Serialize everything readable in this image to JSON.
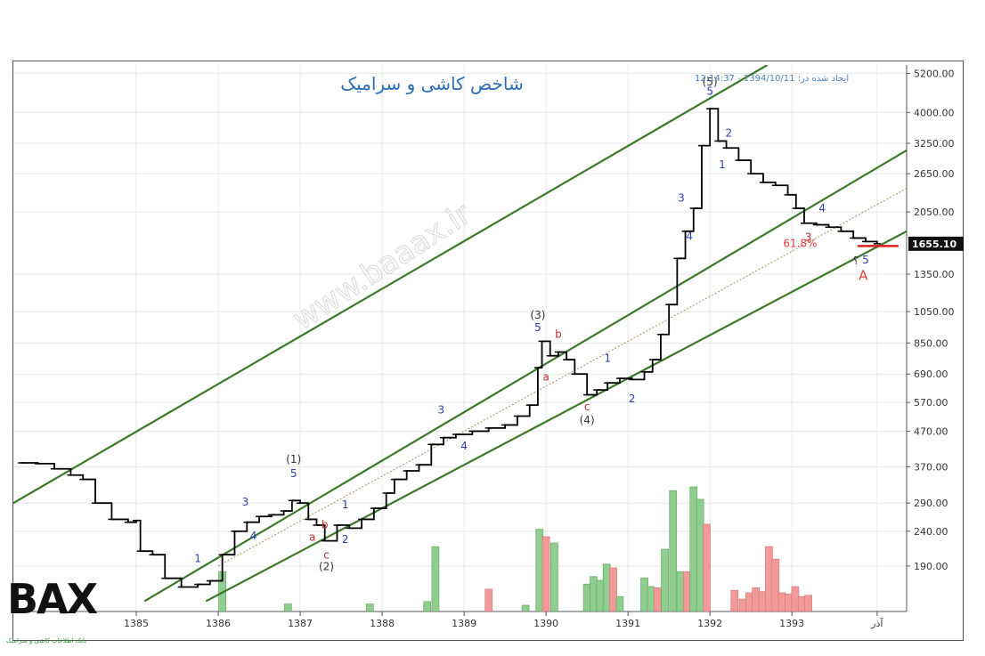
{
  "chart_data": {
    "type": "line",
    "subtype": "ohlc-bars-with-volume",
    "title": "شاخص کاشی و سرامیک",
    "timestamp": "ایجاد شده در: 1394/10/11 - 12:14:37",
    "y_scale": "log",
    "ylim": [
      140,
      5500
    ],
    "y_ticks": [
      "5200.00",
      "4000.00",
      "3250.00",
      "2650.00",
      "2050.00",
      "1655.10",
      "1350.00",
      "1050.00",
      "850.00",
      "690.00",
      "570.00",
      "470.00",
      "370.00",
      "290.00",
      "240.00",
      "190.00"
    ],
    "y_tick_values": [
      5200,
      4000,
      3250,
      2650,
      2050,
      1655.1,
      1350,
      1050,
      850,
      690,
      570,
      470,
      370,
      290,
      240,
      190
    ],
    "current_value_label": "1655.10",
    "current_value": 1655.1,
    "x_ticks": [
      "1385",
      "1386",
      "1387",
      "1388",
      "1389",
      "1390",
      "1391",
      "1392",
      "1393",
      "آذر"
    ],
    "x_tick_values": [
      1385,
      1386,
      1387,
      1388,
      1389,
      1390,
      1391,
      1392,
      1393,
      1394.04
    ],
    "xlim": [
      1383.5,
      1394.4
    ],
    "grid": true,
    "price_series": [
      [
        1383.6,
        380
      ],
      [
        1383.8,
        378
      ],
      [
        1384.0,
        365
      ],
      [
        1384.2,
        350
      ],
      [
        1384.35,
        340
      ],
      [
        1384.5,
        290
      ],
      [
        1384.7,
        260
      ],
      [
        1384.9,
        255
      ],
      [
        1385.0,
        258
      ],
      [
        1385.05,
        210
      ],
      [
        1385.2,
        205
      ],
      [
        1385.35,
        175
      ],
      [
        1385.55,
        165
      ],
      [
        1385.75,
        168
      ],
      [
        1385.9,
        172
      ],
      [
        1386.05,
        205
      ],
      [
        1386.2,
        240
      ],
      [
        1386.35,
        255
      ],
      [
        1386.5,
        265
      ],
      [
        1386.65,
        268
      ],
      [
        1386.8,
        275
      ],
      [
        1386.9,
        295
      ],
      [
        1387.0,
        290
      ],
      [
        1387.1,
        260
      ],
      [
        1387.2,
        250
      ],
      [
        1387.3,
        225
      ],
      [
        1387.45,
        250
      ],
      [
        1387.6,
        245
      ],
      [
        1387.75,
        260
      ],
      [
        1387.9,
        280
      ],
      [
        1388.05,
        310
      ],
      [
        1388.15,
        340
      ],
      [
        1388.3,
        360
      ],
      [
        1388.45,
        375
      ],
      [
        1388.6,
        430
      ],
      [
        1388.75,
        450
      ],
      [
        1388.9,
        460
      ],
      [
        1389.1,
        470
      ],
      [
        1389.3,
        480
      ],
      [
        1389.5,
        490
      ],
      [
        1389.65,
        520
      ],
      [
        1389.8,
        560
      ],
      [
        1389.9,
        720
      ],
      [
        1389.95,
        860
      ],
      [
        1390.05,
        780
      ],
      [
        1390.15,
        800
      ],
      [
        1390.25,
        760
      ],
      [
        1390.35,
        690
      ],
      [
        1390.5,
        600
      ],
      [
        1390.62,
        620
      ],
      [
        1390.75,
        650
      ],
      [
        1390.9,
        670
      ],
      [
        1391.05,
        665
      ],
      [
        1391.2,
        700
      ],
      [
        1391.3,
        760
      ],
      [
        1391.4,
        900
      ],
      [
        1391.5,
        1100
      ],
      [
        1391.6,
        1500
      ],
      [
        1391.7,
        1800
      ],
      [
        1391.8,
        2100
      ],
      [
        1391.9,
        3200
      ],
      [
        1392.0,
        4100
      ],
      [
        1392.1,
        3300
      ],
      [
        1392.2,
        3150
      ],
      [
        1392.35,
        2900
      ],
      [
        1392.5,
        2650
      ],
      [
        1392.65,
        2500
      ],
      [
        1392.8,
        2450
      ],
      [
        1392.95,
        2300
      ],
      [
        1393.05,
        2100
      ],
      [
        1393.15,
        1900
      ],
      [
        1393.3,
        1880
      ],
      [
        1393.45,
        1850
      ],
      [
        1393.6,
        1800
      ],
      [
        1393.75,
        1720
      ],
      [
        1393.9,
        1680
      ],
      [
        1394.04,
        1655
      ]
    ],
    "volume_bars": [
      [
        1386.05,
        0.32,
        "up"
      ],
      [
        1386.85,
        0.06,
        "up"
      ],
      [
        1387.85,
        0.06,
        "up"
      ],
      [
        1388.55,
        0.08,
        "up"
      ],
      [
        1388.65,
        0.52,
        "up"
      ],
      [
        1389.3,
        0.18,
        "down"
      ],
      [
        1389.75,
        0.05,
        "up"
      ],
      [
        1389.92,
        0.66,
        "up"
      ],
      [
        1390.0,
        0.6,
        "down"
      ],
      [
        1390.1,
        0.55,
        "up"
      ],
      [
        1390.5,
        0.22,
        "up"
      ],
      [
        1390.58,
        0.28,
        "up"
      ],
      [
        1390.66,
        0.25,
        "up"
      ],
      [
        1390.74,
        0.38,
        "up"
      ],
      [
        1390.82,
        0.35,
        "down"
      ],
      [
        1390.9,
        0.12,
        "up"
      ],
      [
        1391.2,
        0.27,
        "up"
      ],
      [
        1391.28,
        0.2,
        "up"
      ],
      [
        1391.36,
        0.19,
        "down"
      ],
      [
        1391.45,
        0.5,
        "up"
      ],
      [
        1391.55,
        0.97,
        "up"
      ],
      [
        1391.64,
        0.32,
        "up"
      ],
      [
        1391.72,
        0.32,
        "down"
      ],
      [
        1391.8,
        1.0,
        "up"
      ],
      [
        1391.88,
        0.9,
        "up"
      ],
      [
        1391.96,
        0.7,
        "down"
      ],
      [
        1392.3,
        0.17,
        "down"
      ],
      [
        1392.4,
        0.1,
        "down"
      ],
      [
        1392.48,
        0.15,
        "down"
      ],
      [
        1392.56,
        0.19,
        "down"
      ],
      [
        1392.64,
        0.16,
        "down"
      ],
      [
        1392.72,
        0.52,
        "down"
      ],
      [
        1392.8,
        0.42,
        "down"
      ],
      [
        1392.88,
        0.15,
        "down"
      ],
      [
        1392.96,
        0.14,
        "down"
      ],
      [
        1393.04,
        0.2,
        "down"
      ],
      [
        1393.12,
        0.12,
        "down"
      ],
      [
        1393.2,
        0.13,
        "down"
      ]
    ],
    "channels": [
      {
        "x1": 1383.5,
        "y1": 290,
        "x2": 1392.7,
        "y2": 5500,
        "color": "#3a7a2a"
      },
      {
        "x1": 1385.1,
        "y1": 150,
        "x2": 1394.4,
        "y2": 3100,
        "color": "#3a7a2a"
      },
      {
        "x1": 1385.85,
        "y1": 150,
        "x2": 1394.4,
        "y2": 1800,
        "color": "#3a7a2a"
      }
    ],
    "midline": {
      "x1": 1386.0,
      "y1": 190,
      "x2": 1394.4,
      "y2": 2400,
      "color": "#b08a60"
    },
    "support_line": {
      "x1": 1393.8,
      "x2": 1394.3,
      "y": 1630,
      "color": "#e02020"
    },
    "annotations": [
      {
        "text": "(5)",
        "x": 1392.0,
        "y": 4800,
        "color": "#333333"
      },
      {
        "text": "5",
        "x": 1392.0,
        "y": 4500,
        "color": "#2b3fb0"
      },
      {
        "text": "2",
        "x": 1392.23,
        "y": 3400,
        "color": "#2b3fb0"
      },
      {
        "text": "1",
        "x": 1392.15,
        "y": 2750,
        "color": "#2b3fb0"
      },
      {
        "text": "3",
        "x": 1391.65,
        "y": 2200,
        "color": "#2b3fb0"
      },
      {
        "text": "4",
        "x": 1391.75,
        "y": 1700,
        "color": "#2b3fb0"
      },
      {
        "text": "4",
        "x": 1393.37,
        "y": 2050,
        "color": "#2b3fb0"
      },
      {
        "text": "3",
        "x": 1393.2,
        "y": 1690,
        "color": "#c03030"
      },
      {
        "text": "61.8%",
        "x": 1393.1,
        "y": 1620,
        "color": "#e04040"
      },
      {
        "text": "؟",
        "x": 1393.78,
        "y": 1440,
        "color": "#333333"
      },
      {
        "text": "5",
        "x": 1393.9,
        "y": 1450,
        "color": "#2b3fb0"
      },
      {
        "text": "A",
        "x": 1393.87,
        "y": 1300,
        "color": "#e04040"
      },
      {
        "text": "(3)",
        "x": 1389.9,
        "y": 1000,
        "color": "#333333"
      },
      {
        "text": "5",
        "x": 1389.9,
        "y": 920,
        "color": "#2b3fb0"
      },
      {
        "text": "b",
        "x": 1390.15,
        "y": 880,
        "color": "#c03030"
      },
      {
        "text": "a",
        "x": 1390.0,
        "y": 660,
        "color": "#c03030"
      },
      {
        "text": "1",
        "x": 1390.75,
        "y": 750,
        "color": "#2b3fb0"
      },
      {
        "text": "2",
        "x": 1391.05,
        "y": 570,
        "color": "#2b3fb0"
      },
      {
        "text": "c",
        "x": 1390.5,
        "y": 540,
        "color": "#c03030"
      },
      {
        "text": "(4)",
        "x": 1390.5,
        "y": 495,
        "color": "#333333"
      },
      {
        "text": "3",
        "x": 1388.72,
        "y": 530,
        "color": "#2b3fb0"
      },
      {
        "text": "4",
        "x": 1389.0,
        "y": 415,
        "color": "#2b3fb0"
      },
      {
        "text": "(1)",
        "x": 1386.92,
        "y": 380,
        "color": "#333333"
      },
      {
        "text": "5",
        "x": 1386.92,
        "y": 345,
        "color": "#2b3fb0"
      },
      {
        "text": "3",
        "x": 1386.33,
        "y": 285,
        "color": "#2b3fb0"
      },
      {
        "text": "4",
        "x": 1386.43,
        "y": 227,
        "color": "#2b3fb0"
      },
      {
        "text": "b",
        "x": 1387.3,
        "y": 245,
        "color": "#c03030"
      },
      {
        "text": "1",
        "x": 1387.55,
        "y": 280,
        "color": "#2b3fb0"
      },
      {
        "text": "a",
        "x": 1387.15,
        "y": 225,
        "color": "#c03030"
      },
      {
        "text": "2",
        "x": 1387.55,
        "y": 222,
        "color": "#2b3fb0"
      },
      {
        "text": "c",
        "x": 1387.32,
        "y": 200,
        "color": "#c03030"
      },
      {
        "text": "(2)",
        "x": 1387.32,
        "y": 185,
        "color": "#333333"
      },
      {
        "text": "1",
        "x": 1385.75,
        "y": 195,
        "color": "#2b3fb0"
      }
    ],
    "watermark": "www.baaax.ir"
  },
  "logo": {
    "main": "BAX",
    "sub": "بانک اطلاعات کاشی و سرامیک"
  },
  "colors": {
    "price": "#000000",
    "channel": "#3a7a2a",
    "volume_up": "#8fce8f",
    "volume_down": "#f29a9a",
    "axis_text": "#333333",
    "title": "#2a6db5"
  }
}
